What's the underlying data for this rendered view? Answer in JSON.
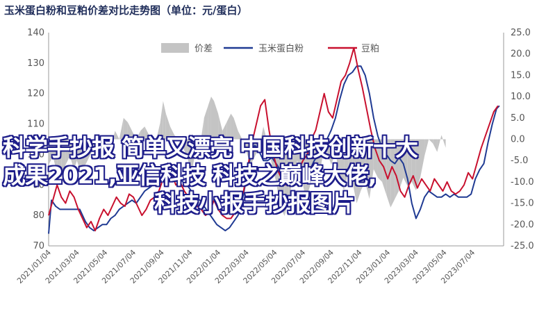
{
  "overlay_text": {
    "line1": "科学手抄报 简单又漂亮 中国科技创新十大",
    "line2": "成果2021,亚信科技 科技之巅峰大佬,",
    "line3": "科技小报手抄报图片"
  },
  "chart_data": {
    "type": "line",
    "title": "玉米蛋白粉和豆粕价差对比走势图（单位：元/蛋白）",
    "left_axis": {
      "min": 70,
      "max": 140,
      "ticks": [
        "140",
        "130",
        "120",
        "110",
        "100",
        "90",
        "80",
        "70"
      ]
    },
    "right_axis": {
      "min": -25,
      "max": 25,
      "ticks": [
        "25.0",
        "20.0",
        "15.0",
        "10.0",
        "5.0",
        "0.0",
        "-5.0",
        "-10.0",
        "-15.0",
        "-20.0",
        "-25.0"
      ]
    },
    "x_ticks": [
      "2021/01/04",
      "2021/03/04",
      "2021/05/04",
      "2021/07/04",
      "2021/09/04",
      "2021/11/04",
      "2022/01/04",
      "2022/03/04",
      "2022/05/04",
      "2022/07/04",
      "2022/09/04",
      "2022/11/04",
      "2023/01/04",
      "2023/03/04",
      "2023/05/04",
      "2023/07/04"
    ],
    "legend": {
      "position": "top-center"
    },
    "colors": {
      "spread": "#c4c4c4",
      "corn": "#1f3a93",
      "soy": "#c8102e"
    },
    "series": [
      {
        "name": "价差",
        "key": "spread",
        "axis": "right",
        "style": "area",
        "points": [
          [
            0.0,
            -6
          ],
          [
            0.3,
            -4
          ],
          [
            0.6,
            -8
          ],
          [
            0.9,
            -9
          ],
          [
            1.2,
            -6
          ],
          [
            1.5,
            -4
          ],
          [
            1.8,
            -7
          ],
          [
            2.0,
            -5
          ],
          [
            2.3,
            -8
          ],
          [
            2.6,
            -6
          ],
          [
            2.9,
            -4
          ],
          [
            3.2,
            -2
          ],
          [
            3.5,
            -1
          ],
          [
            3.8,
            1
          ],
          [
            4.1,
            0
          ],
          [
            4.4,
            -2
          ],
          [
            4.7,
            2
          ],
          [
            5.0,
            0
          ],
          [
            5.3,
            5
          ],
          [
            5.6,
            4
          ],
          [
            5.9,
            2
          ],
          [
            6.2,
            0
          ],
          [
            6.5,
            2
          ],
          [
            6.8,
            3
          ],
          [
            7.1,
            1
          ],
          [
            7.4,
            -1
          ],
          [
            7.7,
            1
          ],
          [
            7.9,
            4
          ],
          [
            8.1,
            9
          ],
          [
            8.3,
            6
          ],
          [
            8.6,
            3
          ],
          [
            8.9,
            1
          ],
          [
            9.2,
            0
          ],
          [
            9.5,
            -2
          ],
          [
            9.8,
            -4
          ],
          [
            10.1,
            -8
          ],
          [
            10.4,
            -3
          ],
          [
            10.7,
            -2
          ],
          [
            11.0,
            5
          ],
          [
            11.3,
            8
          ],
          [
            11.5,
            10
          ],
          [
            11.7,
            9
          ],
          [
            12.0,
            6
          ],
          [
            12.3,
            2
          ],
          [
            12.6,
            4
          ],
          [
            12.9,
            6
          ],
          [
            13.1,
            5
          ],
          [
            13.4,
            2
          ],
          [
            13.7,
            0
          ],
          [
            14.0,
            -3
          ],
          [
            14.3,
            -6
          ],
          [
            14.6,
            -4
          ],
          [
            14.9,
            -2
          ],
          [
            15.2,
            3
          ],
          [
            15.5,
            -1
          ],
          [
            15.8,
            -6
          ],
          [
            16.1,
            -10
          ],
          [
            16.4,
            -16
          ],
          [
            16.7,
            -18
          ],
          [
            17.0,
            -14
          ],
          [
            17.3,
            -9
          ],
          [
            17.6,
            -5
          ],
          [
            17.9,
            -9
          ],
          [
            18.2,
            -14
          ],
          [
            18.5,
            -11
          ],
          [
            18.8,
            -7
          ],
          [
            19.1,
            -9
          ],
          [
            19.4,
            -4
          ],
          [
            19.7,
            -3
          ],
          [
            20.0,
            -6
          ],
          [
            20.3,
            -3
          ],
          [
            20.6,
            -9
          ],
          [
            20.9,
            -12
          ],
          [
            21.2,
            -8
          ],
          [
            21.5,
            -10
          ],
          [
            21.8,
            -15
          ],
          [
            22.1,
            -12
          ],
          [
            22.4,
            -10
          ],
          [
            22.7,
            -14
          ],
          [
            23.0,
            -7
          ],
          [
            23.3,
            -9
          ],
          [
            23.6,
            -10
          ],
          [
            23.9,
            -13
          ],
          [
            24.2,
            -16
          ],
          [
            24.5,
            -14
          ],
          [
            24.8,
            -12
          ],
          [
            25.1,
            -9
          ],
          [
            25.4,
            -11
          ],
          [
            25.7,
            -10
          ],
          [
            26.0,
            -12
          ],
          [
            26.3,
            -9
          ],
          [
            26.6,
            -4
          ],
          [
            26.9,
            0
          ],
          [
            27.2,
            -1
          ],
          [
            27.5,
            -3
          ],
          [
            27.8,
            1
          ],
          [
            28.1,
            -2
          ]
        ]
      },
      {
        "name": "玉米蛋白粉",
        "key": "corn",
        "axis": "left",
        "style": "line",
        "points": [
          [
            0.0,
            74
          ],
          [
            0.2,
            85
          ],
          [
            0.5,
            83
          ],
          [
            0.8,
            82
          ],
          [
            1.1,
            82
          ],
          [
            1.4,
            82
          ],
          [
            1.7,
            82
          ],
          [
            2.0,
            82
          ],
          [
            2.2,
            82
          ],
          [
            2.4,
            80
          ],
          [
            2.6,
            78
          ],
          [
            2.9,
            76
          ],
          [
            3.2,
            75
          ],
          [
            3.5,
            76
          ],
          [
            3.8,
            77
          ],
          [
            4.1,
            77
          ],
          [
            4.4,
            79
          ],
          [
            4.7,
            80
          ],
          [
            5.0,
            82
          ],
          [
            5.3,
            83
          ],
          [
            5.6,
            84
          ],
          [
            5.9,
            85
          ],
          [
            6.2,
            84
          ],
          [
            6.5,
            86
          ],
          [
            6.8,
            88
          ],
          [
            7.1,
            89
          ],
          [
            7.4,
            90
          ],
          [
            7.7,
            91
          ],
          [
            8.0,
            92
          ],
          [
            8.3,
            93
          ],
          [
            8.6,
            95
          ],
          [
            8.9,
            94
          ],
          [
            9.2,
            93
          ],
          [
            9.5,
            91
          ],
          [
            9.8,
            90
          ],
          [
            10.1,
            88
          ],
          [
            10.4,
            86
          ],
          [
            10.7,
            85
          ],
          [
            11.0,
            83
          ],
          [
            11.3,
            81
          ],
          [
            11.6,
            79
          ],
          [
            11.9,
            77
          ],
          [
            12.2,
            76
          ],
          [
            12.5,
            75
          ],
          [
            12.8,
            76
          ],
          [
            13.1,
            78
          ],
          [
            13.4,
            80
          ],
          [
            13.7,
            85
          ],
          [
            14.0,
            92
          ],
          [
            14.3,
            100
          ],
          [
            14.6,
            103
          ],
          [
            14.9,
            101
          ],
          [
            15.2,
            98
          ],
          [
            15.5,
            98
          ],
          [
            15.8,
            99
          ],
          [
            16.1,
            97
          ],
          [
            16.4,
            95
          ],
          [
            16.7,
            96
          ],
          [
            17.0,
            97
          ],
          [
            17.3,
            95
          ],
          [
            17.6,
            93
          ],
          [
            17.9,
            92
          ],
          [
            18.2,
            94
          ],
          [
            18.5,
            95
          ],
          [
            18.8,
            98
          ],
          [
            19.1,
            100
          ],
          [
            19.4,
            103
          ],
          [
            19.7,
            105
          ],
          [
            20.0,
            108
          ],
          [
            20.3,
            112
          ],
          [
            20.6,
            118
          ],
          [
            20.9,
            123
          ],
          [
            21.2,
            126
          ],
          [
            21.5,
            127
          ],
          [
            21.8,
            129
          ],
          [
            22.1,
            129
          ],
          [
            22.4,
            126
          ],
          [
            22.7,
            120
          ],
          [
            23.0,
            112
          ],
          [
            23.3,
            106
          ],
          [
            23.6,
            102
          ],
          [
            23.9,
            100
          ],
          [
            24.2,
            98
          ],
          [
            24.5,
            97
          ],
          [
            24.8,
            99
          ],
          [
            25.1,
            97
          ],
          [
            25.4,
            92
          ],
          [
            25.7,
            84
          ],
          [
            26.0,
            79
          ],
          [
            26.3,
            82
          ],
          [
            26.6,
            86
          ],
          [
            26.9,
            88
          ],
          [
            27.2,
            87
          ],
          [
            27.5,
            86
          ],
          [
            27.8,
            86
          ],
          [
            28.1,
            87
          ],
          [
            28.4,
            86
          ],
          [
            28.7,
            87
          ],
          [
            29.0,
            86
          ],
          [
            29.3,
            86
          ],
          [
            29.6,
            86
          ],
          [
            29.9,
            87
          ],
          [
            30.2,
            92
          ],
          [
            30.5,
            95
          ],
          [
            30.8,
            97
          ],
          [
            31.1,
            104
          ],
          [
            31.4,
            110
          ],
          [
            31.7,
            115
          ],
          [
            31.9,
            116
          ]
        ]
      },
      {
        "name": "豆粕",
        "key": "soy",
        "axis": "left",
        "style": "line",
        "points": [
          [
            0.0,
            80
          ],
          [
            0.3,
            85
          ],
          [
            0.6,
            90
          ],
          [
            0.9,
            86
          ],
          [
            1.2,
            84
          ],
          [
            1.5,
            88
          ],
          [
            1.8,
            86
          ],
          [
            2.1,
            82
          ],
          [
            2.4,
            79
          ],
          [
            2.7,
            76
          ],
          [
            3.0,
            78
          ],
          [
            3.3,
            75
          ],
          [
            3.6,
            79
          ],
          [
            3.9,
            82
          ],
          [
            4.2,
            80
          ],
          [
            4.5,
            83
          ],
          [
            4.8,
            86
          ],
          [
            5.1,
            84
          ],
          [
            5.4,
            83
          ],
          [
            5.7,
            87
          ],
          [
            6.0,
            86
          ],
          [
            6.3,
            83
          ],
          [
            6.6,
            80
          ],
          [
            6.9,
            82
          ],
          [
            7.2,
            85
          ],
          [
            7.5,
            86
          ],
          [
            7.8,
            88
          ],
          [
            8.1,
            92
          ],
          [
            8.4,
            96
          ],
          [
            8.7,
            94
          ],
          [
            9.0,
            90
          ],
          [
            9.3,
            91
          ],
          [
            9.6,
            88
          ],
          [
            9.9,
            86
          ],
          [
            10.2,
            85
          ],
          [
            10.5,
            83
          ],
          [
            10.8,
            82
          ],
          [
            11.1,
            80
          ],
          [
            11.4,
            81
          ],
          [
            11.7,
            85
          ],
          [
            12.0,
            82
          ],
          [
            12.3,
            80
          ],
          [
            12.6,
            79
          ],
          [
            12.9,
            79
          ],
          [
            13.2,
            81
          ],
          [
            13.5,
            84
          ],
          [
            13.8,
            88
          ],
          [
            14.1,
            96
          ],
          [
            14.4,
            104
          ],
          [
            14.7,
            110
          ],
          [
            15.0,
            116
          ],
          [
            15.3,
            118
          ],
          [
            15.6,
            108
          ],
          [
            15.9,
            100
          ],
          [
            16.2,
            95
          ],
          [
            16.5,
            92
          ],
          [
            16.8,
            90
          ],
          [
            17.1,
            94
          ],
          [
            17.4,
            96
          ],
          [
            17.7,
            95
          ],
          [
            18.0,
            98
          ],
          [
            18.3,
            100
          ],
          [
            18.6,
            105
          ],
          [
            18.9,
            108
          ],
          [
            19.2,
            114
          ],
          [
            19.5,
            120
          ],
          [
            19.8,
            114
          ],
          [
            20.1,
            112
          ],
          [
            20.4,
            118
          ],
          [
            20.7,
            124
          ],
          [
            21.0,
            126
          ],
          [
            21.3,
            130
          ],
          [
            21.6,
            135
          ],
          [
            21.9,
            128
          ],
          [
            22.2,
            122
          ],
          [
            22.5,
            115
          ],
          [
            22.8,
            108
          ],
          [
            23.1,
            102
          ],
          [
            23.4,
            98
          ],
          [
            23.7,
            96
          ],
          [
            24.0,
            92
          ],
          [
            24.3,
            96
          ],
          [
            24.6,
            93
          ],
          [
            24.9,
            88
          ],
          [
            25.2,
            86
          ],
          [
            25.5,
            90
          ],
          [
            25.8,
            93
          ],
          [
            26.1,
            89
          ],
          [
            26.4,
            92
          ],
          [
            26.7,
            90
          ],
          [
            27.0,
            88
          ],
          [
            27.3,
            92
          ],
          [
            27.6,
            90
          ],
          [
            27.9,
            88
          ],
          [
            28.2,
            91
          ],
          [
            28.5,
            88
          ],
          [
            28.8,
            87
          ],
          [
            29.1,
            88
          ],
          [
            29.4,
            90
          ],
          [
            29.7,
            94
          ],
          [
            30.0,
            92
          ],
          [
            30.3,
            97
          ],
          [
            30.6,
            102
          ],
          [
            30.9,
            106
          ],
          [
            31.2,
            110
          ],
          [
            31.5,
            114
          ],
          [
            31.8,
            116
          ]
        ]
      }
    ]
  }
}
